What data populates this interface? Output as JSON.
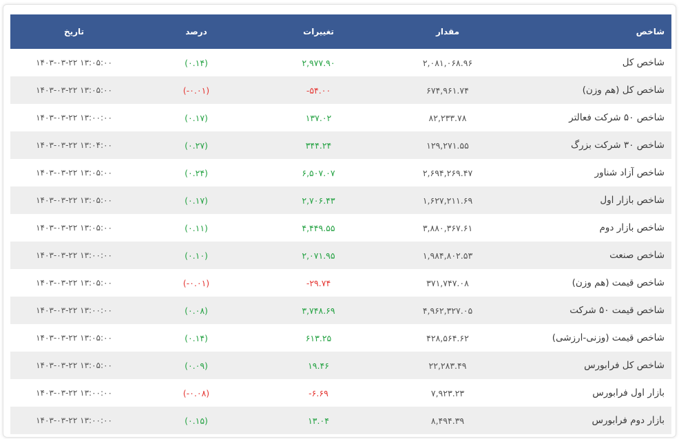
{
  "table": {
    "headers": {
      "name": "شاخص",
      "value": "مقدار",
      "change": "تغییرات",
      "percent": "درصد",
      "date": "تاریخ"
    },
    "rows": [
      {
        "name": "شاخص کل",
        "value": "۲,۰۸۱,۰۶۸.۹۶",
        "change": "۲,۹۷۷.۹۰",
        "percent": "(۰.۱۴)",
        "date": "۱۴۰۳-۰۳-۲۲ ۱۳:۰۵:۰۰",
        "trend": "pos"
      },
      {
        "name": "شاخص کل (هم وزن)",
        "value": "۶۷۴,۹۶۱.۷۴",
        "change": "-۵۴.۰۰",
        "percent": "(-۰.۰۱)",
        "date": "۱۴۰۳-۰۳-۲۲ ۱۳:۰۵:۰۰",
        "trend": "neg"
      },
      {
        "name": "شاخص ۵۰ شرکت فعالتر",
        "value": "۸۲,۲۳۳.۷۸",
        "change": "۱۳۷.۰۲",
        "percent": "(۰.۱۷)",
        "date": "۱۴۰۳-۰۳-۲۲ ۱۳:۰۰:۰۰",
        "trend": "pos"
      },
      {
        "name": "شاخص ۳۰ شرکت بزرگ",
        "value": "۱۲۹,۲۷۱.۵۵",
        "change": "۳۴۴.۲۴",
        "percent": "(۰.۲۷)",
        "date": "۱۴۰۳-۰۳-۲۲ ۱۳:۰۴:۰۰",
        "trend": "pos"
      },
      {
        "name": "شاخص آزاد شناور",
        "value": "۲,۶۹۴,۲۶۹.۴۷",
        "change": "۶,۵۰۷.۰۷",
        "percent": "(۰.۲۴)",
        "date": "۱۴۰۳-۰۳-۲۲ ۱۳:۰۵:۰۰",
        "trend": "pos"
      },
      {
        "name": "شاخص بازار اول",
        "value": "۱,۶۲۷,۲۱۱.۶۹",
        "change": "۲,۷۰۶.۴۳",
        "percent": "(۰.۱۷)",
        "date": "۱۴۰۳-۰۳-۲۲ ۱۳:۰۵:۰۰",
        "trend": "pos"
      },
      {
        "name": "شاخص بازار دوم",
        "value": "۳,۸۸۰,۳۶۷.۶۱",
        "change": "۴,۴۴۹.۵۵",
        "percent": "(۰.۱۱)",
        "date": "۱۴۰۳-۰۳-۲۲ ۱۳:۰۵:۰۰",
        "trend": "pos"
      },
      {
        "name": "شاخص صنعت",
        "value": "۱,۹۸۴,۸۰۲.۵۳",
        "change": "۲,۰۷۱.۹۵",
        "percent": "(۰.۱۰)",
        "date": "۱۴۰۳-۰۳-۲۲ ۱۳:۰۰:۰۰",
        "trend": "pos"
      },
      {
        "name": "شاخص قیمت (هم وزن)",
        "value": "۳۷۱,۷۴۷.۰۸",
        "change": "-۲۹.۷۴",
        "percent": "(-۰.۰۱)",
        "date": "۱۴۰۳-۰۳-۲۲ ۱۳:۰۵:۰۰",
        "trend": "neg"
      },
      {
        "name": "شاخص قیمت ۵۰ شرکت",
        "value": "۴,۹۶۲,۳۲۷.۰۵",
        "change": "۳,۷۴۸.۶۹",
        "percent": "(۰.۰۸)",
        "date": "۱۴۰۳-۰۳-۲۲ ۱۳:۰۰:۰۰",
        "trend": "pos"
      },
      {
        "name": "شاخص قیمت (وزنی-ارزشی)",
        "value": "۴۲۸,۵۶۴.۶۲",
        "change": "۶۱۳.۲۵",
        "percent": "(۰.۱۴)",
        "date": "۱۴۰۳-۰۳-۲۲ ۱۳:۰۵:۰۰",
        "trend": "pos"
      },
      {
        "name": "شاخص کل فرابورس",
        "value": "۲۲,۲۸۳.۴۹",
        "change": "۱۹.۴۶",
        "percent": "(۰.۰۹)",
        "date": "۱۴۰۳-۰۳-۲۲ ۱۳:۰۵:۰۰",
        "trend": "pos"
      },
      {
        "name": "بازار اول فرابورس",
        "value": "۷,۹۲۳.۲۳",
        "change": "-۶.۶۹",
        "percent": "(-۰.۰۸)",
        "date": "۱۴۰۳-۰۳-۲۲ ۱۳:۰۰:۰۰",
        "trend": "neg"
      },
      {
        "name": "بازار دوم فرابورس",
        "value": "۸,۴۹۴.۳۹",
        "change": "۱۳.۰۴",
        "percent": "(۰.۱۵)",
        "date": "۱۴۰۳-۰۳-۲۲ ۱۳:۰۰:۰۰",
        "trend": "pos"
      }
    ]
  },
  "colors": {
    "header_bg": "#3a5a93",
    "positive": "#27a345",
    "negative": "#e53935",
    "row_alt": "#eeeeee"
  }
}
